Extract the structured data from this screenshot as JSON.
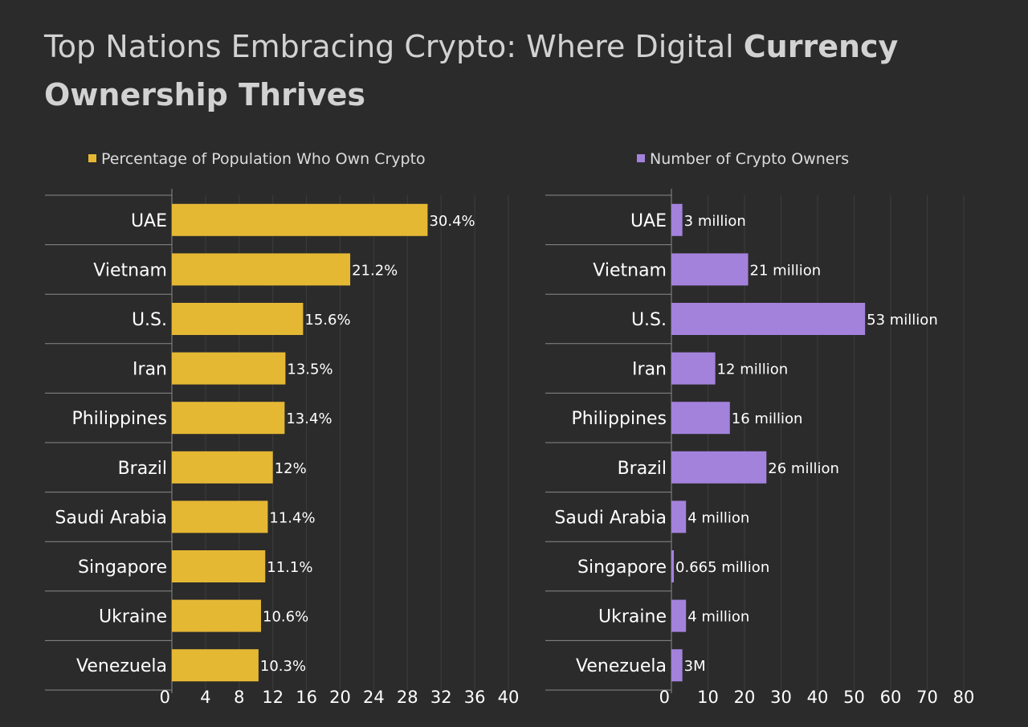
{
  "title": {
    "light": "Top Nations Embracing Crypto: Where Digital ",
    "bold": "Currency Ownership Thrives"
  },
  "colors": {
    "background": "#2b2b2b",
    "percent_bar": "#e5b834",
    "owners_bar": "#a382dc",
    "grid": "#8a8a8a"
  },
  "chart_data": [
    {
      "type": "bar",
      "orientation": "horizontal",
      "legend": "Percentage of Population Who Own Crypto",
      "categories": [
        "UAE",
        "Vietnam",
        "U.S.",
        "Iran",
        "Philippines",
        "Brazil",
        "Saudi Arabia",
        "Singapore",
        "Ukraine",
        "Venezuela"
      ],
      "values": [
        30.4,
        21.2,
        15.6,
        13.5,
        13.4,
        12,
        11.4,
        11.1,
        10.6,
        10.3
      ],
      "data_labels": [
        "30.4%",
        "21.2%",
        "15.6%",
        "13.5%",
        "13.4%",
        "12%",
        "11.4%",
        "11.1%",
        "10.6%",
        "10.3%"
      ],
      "xlim": [
        0,
        40
      ],
      "ticks": [
        0,
        4,
        8,
        12,
        16,
        20,
        24,
        28,
        32,
        36,
        40
      ],
      "tick_labels": [
        "0",
        "4",
        "8",
        "12",
        "16",
        "20",
        "24",
        "28",
        "32",
        "36",
        "40"
      ]
    },
    {
      "type": "bar",
      "orientation": "horizontal",
      "legend": "Number of Crypto Owners",
      "categories": [
        "UAE",
        "Vietnam",
        "U.S.",
        "Iran",
        "Philippines",
        "Brazil",
        "Saudi Arabia",
        "Singapore",
        "Ukraine",
        "Venezuela"
      ],
      "values": [
        3,
        21,
        53,
        12,
        16,
        26,
        4,
        0.665,
        4,
        3
      ],
      "data_labels": [
        "3 million",
        "21 million",
        "53 million",
        "12 million",
        "16 million",
        "26 million",
        "4 million",
        "0.665 million",
        "4 million",
        "3M"
      ],
      "xlim": [
        0,
        80
      ],
      "ticks": [
        0,
        10,
        20,
        30,
        40,
        50,
        60,
        70,
        80
      ],
      "tick_labels": [
        "0",
        "10",
        "20",
        "30",
        "40",
        "50",
        "60",
        "70",
        "80"
      ]
    }
  ]
}
